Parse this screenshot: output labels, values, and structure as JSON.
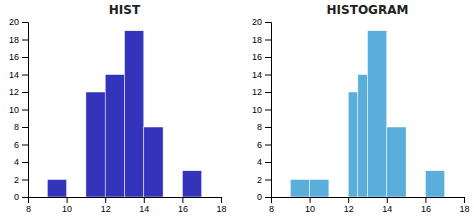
{
  "chart_data": [
    {
      "type": "histogram",
      "title": "HIST",
      "color": "#3333bb",
      "bins": [
        9,
        10,
        11,
        12,
        13,
        14,
        15,
        16,
        17
      ],
      "values": [
        2,
        0,
        12,
        14,
        19,
        8,
        0,
        3
      ],
      "xlim": [
        8,
        18
      ],
      "ylim": [
        0,
        20
      ],
      "xticks": [
        8,
        10,
        12,
        14,
        16,
        18
      ],
      "yticks": [
        0,
        2,
        4,
        6,
        8,
        10,
        12,
        14,
        16,
        18,
        20
      ]
    },
    {
      "type": "histogram",
      "title": "HISTOGRAM",
      "color": "#5aaedb",
      "bins": [
        9,
        10,
        11,
        12,
        12.5,
        13,
        14,
        15,
        16,
        17
      ],
      "values": [
        2,
        2,
        0,
        12,
        14,
        19,
        8,
        0,
        3
      ],
      "xlim": [
        8,
        18
      ],
      "ylim": [
        0,
        20
      ],
      "xticks": [
        8,
        10,
        12,
        14,
        16,
        18
      ],
      "yticks": [
        0,
        2,
        4,
        6,
        8,
        10,
        12,
        14,
        16,
        18,
        20
      ]
    }
  ]
}
